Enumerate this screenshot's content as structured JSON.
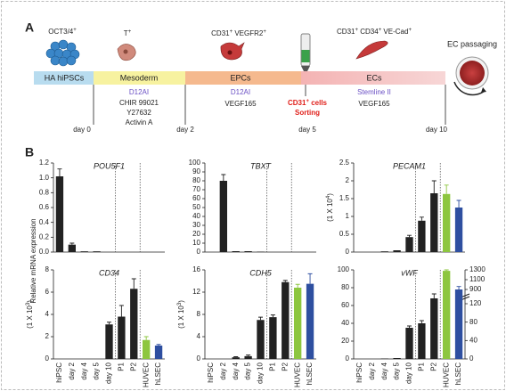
{
  "panel_a": {
    "label": "A",
    "markers": [
      [
        {
          "t": "OCT3/4",
          "sup": "+"
        }
      ],
      [
        {
          "t": "T",
          "sup": "+"
        }
      ],
      [
        {
          "t": "CD31",
          "sup": "+"
        },
        {
          "t": " VEGFR2",
          "sup": "+"
        }
      ],
      [
        {
          "t": "CD31",
          "sup": "+"
        },
        {
          "t": " CD34",
          "sup": "+"
        },
        {
          "t": " VE-Cad",
          "sup": "+"
        }
      ]
    ],
    "passaging": "EC passaging",
    "stages": [
      "HA hiPSCs",
      "Mesoderm",
      "EPCs",
      "ECs"
    ],
    "mesoderm_media": [
      "D12AI",
      "CHIR 99021",
      "Y27632",
      "Activin A"
    ],
    "epc_media": [
      "D12AI",
      "VEGF165"
    ],
    "sorting": {
      "line1": [
        {
          "t": "CD31",
          "sup": "+"
        },
        {
          "t": " cells"
        }
      ],
      "line2": "Sorting"
    },
    "ec_media": [
      "Stemline II",
      "VEGF165"
    ],
    "days": [
      "day 0",
      "day 2",
      "day 5",
      "day 10"
    ]
  },
  "panel_b": {
    "label": "B",
    "y_label": "Relative mRNA expression"
  },
  "chart_data": [
    {
      "type": "bar",
      "title": "POU5F1",
      "values": [
        1.02,
        0.1,
        0.01,
        0.01,
        0,
        0,
        0,
        0,
        0
      ],
      "errors": [
        0.1,
        0.02,
        null,
        null,
        null,
        null,
        null,
        null,
        null
      ],
      "colors": [
        "#222222",
        "#222222",
        "#222222",
        "#222222",
        "#222222",
        "#222222",
        "#222222",
        "#8dc63f",
        "#2e4fa0"
      ],
      "ylim": [
        0,
        1.2
      ],
      "yticks": [
        {
          "value": 0,
          "label": "0.0"
        },
        {
          "value": 0.2,
          "label": "0.2"
        },
        {
          "value": 0.4,
          "label": "0.4"
        },
        {
          "value": 0.6,
          "label": "0.6"
        },
        {
          "value": 0.8,
          "label": "0.8"
        },
        {
          "value": 1,
          "label": "1.0"
        },
        {
          "value": 1.2,
          "label": "1.2"
        }
      ]
    },
    {
      "type": "bar",
      "title": "TBXT",
      "values": [
        0,
        80,
        1,
        1,
        0.5,
        0,
        0,
        0,
        0
      ],
      "errors": [
        null,
        7,
        null,
        null,
        null,
        null,
        null,
        null,
        null
      ],
      "colors": [
        "#222222",
        "#222222",
        "#222222",
        "#222222",
        "#222222",
        "#222222",
        "#222222",
        "#8dc63f",
        "#2e4fa0"
      ],
      "ylim": [
        0,
        100
      ],
      "yticks": [
        0,
        10,
        20,
        30,
        40,
        50,
        60,
        70,
        80,
        90,
        100
      ]
    },
    {
      "type": "bar",
      "title": "PECAM1",
      "scale_label": [
        {
          "t": "(1 X 10",
          "sup": "4"
        },
        {
          "t": ")"
        }
      ],
      "values": [
        0,
        0,
        0.02,
        0.05,
        0.42,
        0.88,
        1.65,
        1.63,
        1.25
      ],
      "errors": [
        null,
        null,
        null,
        null,
        0.05,
        0.1,
        0.35,
        0.25,
        0.2
      ],
      "colors": [
        "#222222",
        "#222222",
        "#222222",
        "#222222",
        "#222222",
        "#222222",
        "#222222",
        "#8dc63f",
        "#2e4fa0"
      ],
      "ylim": [
        0,
        2.5
      ],
      "yticks": [
        0,
        0.5,
        1,
        1.5,
        2,
        2.5
      ]
    },
    {
      "type": "bar",
      "title": "CD34",
      "scale_label": [
        {
          "t": "(1 X 10",
          "sup": "3"
        },
        {
          "t": ")"
        }
      ],
      "categories": [
        "hiPSC",
        "day 2",
        "day 4",
        "day 5",
        "day 10",
        "P1",
        "P2",
        "HUVEC",
        "hLSEC"
      ],
      "values": [
        0,
        0,
        0,
        0,
        3.1,
        3.8,
        6.3,
        1.7,
        1.2
      ],
      "errors": [
        null,
        null,
        null,
        null,
        0.2,
        1,
        0.9,
        0.3,
        0.1
      ],
      "colors": [
        "#222222",
        "#222222",
        "#222222",
        "#222222",
        "#222222",
        "#222222",
        "#222222",
        "#8dc63f",
        "#2e4fa0"
      ],
      "ylim": [
        0,
        8
      ],
      "yticks": [
        0,
        2,
        4,
        6,
        8
      ]
    },
    {
      "type": "bar",
      "title": "CDH5",
      "scale_label": [
        {
          "t": "(1 X 10",
          "sup": "3"
        },
        {
          "t": ")"
        }
      ],
      "categories": [
        "hiPSC",
        "day 2",
        "day 4",
        "day 5",
        "day 10",
        "P1",
        "P2",
        "HUVEC",
        "hLSEC"
      ],
      "values": [
        0,
        0,
        0.3,
        0.5,
        7,
        7.5,
        13.8,
        12.8,
        13.5
      ],
      "errors": [
        null,
        null,
        0.1,
        0.2,
        0.5,
        0.4,
        0.3,
        0.6,
        1.8
      ],
      "colors": [
        "#222222",
        "#222222",
        "#222222",
        "#222222",
        "#222222",
        "#222222",
        "#222222",
        "#8dc63f",
        "#2e4fa0"
      ],
      "ylim": [
        0,
        16
      ],
      "yticks": [
        0,
        4,
        8,
        12,
        16
      ]
    },
    {
      "type": "bar",
      "title": "vWF",
      "categories": [
        "hiPSC",
        "day 2",
        "day 4",
        "day 5",
        "day 10",
        "P1",
        "P2",
        "HUVEC",
        "hLSEC"
      ],
      "values": [
        0,
        0,
        0.5,
        1,
        35,
        40,
        68,
        1280,
        900
      ],
      "errors": [
        null,
        null,
        null,
        null,
        2,
        3,
        5,
        20,
        60
      ],
      "axes": [
        "y",
        "y",
        "y",
        "y",
        "y",
        "y",
        "y",
        "y2",
        "y2"
      ],
      "colors": [
        "#222222",
        "#222222",
        "#222222",
        "#222222",
        "#222222",
        "#222222",
        "#222222",
        "#8dc63f",
        "#2e4fa0"
      ],
      "ylim": [
        0,
        100
      ],
      "yticks": [
        0,
        20,
        40,
        60,
        80,
        100
      ],
      "y2lim": [
        0,
        1300
      ],
      "y2ticks": [
        0,
        40,
        80,
        120,
        900,
        1100,
        1300
      ]
    }
  ]
}
